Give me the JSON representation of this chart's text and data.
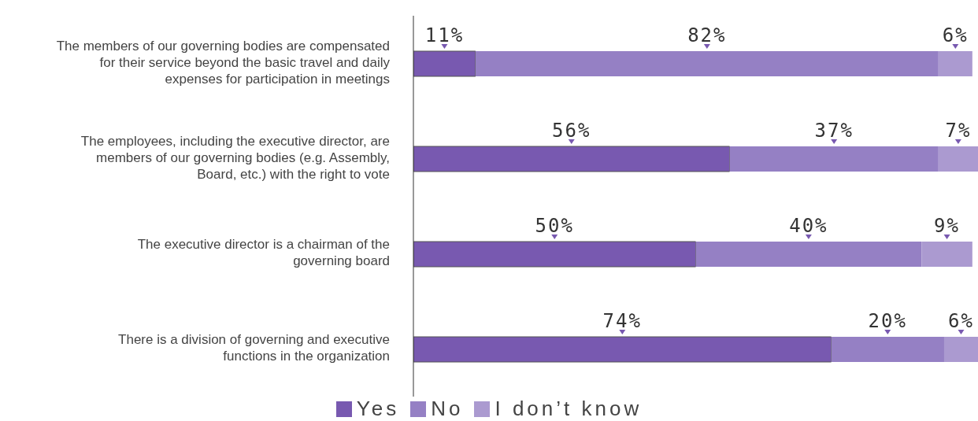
{
  "chart_data": {
    "type": "bar",
    "orientation": "horizontal",
    "stacked": true,
    "categories": [
      "The members of our governing bodies are compensated for their service beyond the basic travel and daily expenses for participation in meetings",
      "The employees, including the executive director, are members of our governing bodies (e.g. Assembly, Board, etc.) with the right to vote",
      "The executive director is a chairman of the governing board",
      "There is a division of governing and executive functions in the organization"
    ],
    "series": [
      {
        "name": "Yes",
        "color": "#7859b0",
        "values": [
          11,
          56,
          50,
          74
        ],
        "value_labels": [
          "11%",
          "56%",
          "50%",
          "74%"
        ]
      },
      {
        "name": "No",
        "color": "#9580c4",
        "values": [
          82,
          37,
          40,
          20
        ],
        "value_labels": [
          "82%",
          "37%",
          "40%",
          "20%"
        ]
      },
      {
        "name": "I don’t know",
        "color": "#ab9ad0",
        "values": [
          6,
          7,
          9,
          6
        ],
        "value_labels": [
          "6%",
          "7%",
          "9%",
          "6%"
        ]
      }
    ],
    "tick_labels": false,
    "legend": "bottom"
  }
}
